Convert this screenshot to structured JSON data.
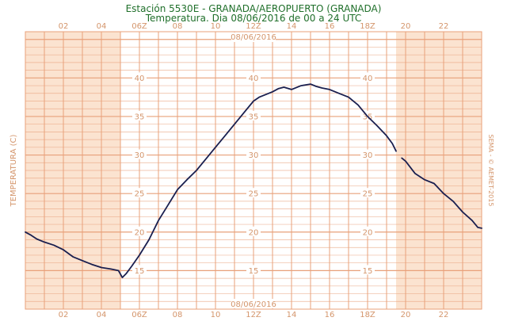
{
  "header": {
    "title": "Estación 5530E - GRANADA/AEROPUERTO (GRANADA)",
    "subtitle": "Temperatura. Dia 08/06/2016 de 00 a 24 UTC"
  },
  "credit": "SEMA - © AEMET-2015",
  "chart_data": {
    "type": "line",
    "title": "Estación 5530E - GRANADA/AEROPUERTO (GRANADA)",
    "subtitle": "Temperatura. Dia 08/06/2016 de 00 a 24 UTC",
    "ylabel": "TEMPERATURA (C)",
    "xlabel": "",
    "date_label": "08/06/2016",
    "xlim": [
      0,
      24
    ],
    "ylim": [
      10,
      46
    ],
    "x_ticks": [
      "02",
      "04",
      "06Z",
      "08",
      "10",
      "12Z",
      "14",
      "16",
      "18Z",
      "20",
      "22"
    ],
    "x_tick_hours": [
      2,
      4,
      6,
      8,
      10,
      12,
      14,
      16,
      18,
      20,
      22
    ],
    "y_ticks": [
      15,
      20,
      25,
      30,
      35,
      40
    ],
    "night_shading_hours": [
      [
        0,
        5
      ],
      [
        19.5,
        24
      ]
    ],
    "grid": true,
    "colors": {
      "line": "#1a1f4f",
      "grid": "#e8a07a",
      "night": "#fbe3d0",
      "title": "#1f6f2a",
      "tick": "#d4956b"
    },
    "series": [
      {
        "segments": [
          {
            "x": [
              0,
              0.3,
              0.6,
              1,
              1.5,
              2,
              2.5,
              3,
              3.5,
              4,
              4.5,
              4.9,
              5.1,
              5.3,
              5.6,
              6,
              6.5,
              7,
              7.5,
              8,
              8.5,
              9,
              9.5,
              10,
              10.5,
              11,
              11.5,
              12,
              12.3,
              12.6,
              13,
              13.3,
              13.6,
              14,
              14.5,
              15,
              15.3,
              15.6,
              16,
              16.5,
              17,
              17.5,
              18,
              18.5,
              19,
              19.3,
              19.5
            ],
            "y": [
              20,
              19.6,
              19.1,
              18.7,
              18.3,
              17.7,
              16.8,
              16.3,
              15.8,
              15.4,
              15.2,
              15.0,
              14.1,
              14.6,
              15.6,
              17.0,
              19.0,
              21.5,
              23.5,
              25.5,
              26.8,
              28.0,
              29.5,
              31.0,
              32.5,
              34.0,
              35.5,
              37.0,
              37.5,
              37.8,
              38.2,
              38.6,
              38.8,
              38.5,
              39.0,
              39.2,
              38.9,
              38.7,
              38.5,
              38.0,
              37.5,
              36.5,
              35.0,
              33.8,
              32.5,
              31.5,
              30.5
            ]
          },
          {
            "x": [
              19.8,
              20,
              20.5,
              21,
              21.5,
              22,
              22.5,
              23,
              23.5,
              23.8,
              24
            ],
            "y": [
              29.6,
              29.2,
              27.6,
              26.8,
              26.3,
              25.0,
              24.0,
              22.6,
              21.5,
              20.6,
              20.5
            ]
          }
        ]
      }
    ]
  }
}
